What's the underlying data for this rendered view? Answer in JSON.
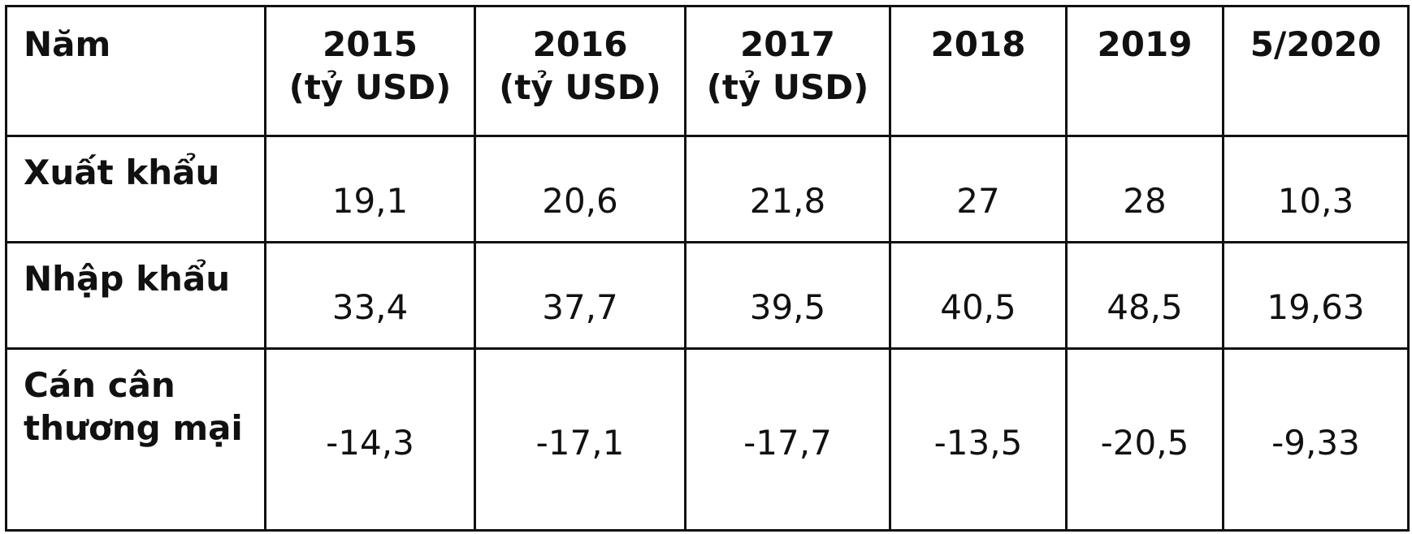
{
  "table": {
    "header": [
      "Năm",
      "2015\n(tỷ USD)",
      "2016\n(tỷ USD)",
      "2017\n(tỷ USD)",
      "2018",
      "2019",
      "5/2020"
    ],
    "rows": [
      [
        "Xuất khẩu",
        "19,1",
        "20,6",
        "21,8",
        "27",
        "28",
        "10,3"
      ],
      [
        "Nhập khẩu",
        "33,4",
        "37,7",
        "39,5",
        "40,5",
        "48,5",
        "19,63"
      ],
      [
        "Cán cân thương mại",
        "-14,3",
        "-17,1",
        "-17,7",
        "-13,5",
        "-20,5",
        "-9,33"
      ]
    ]
  }
}
